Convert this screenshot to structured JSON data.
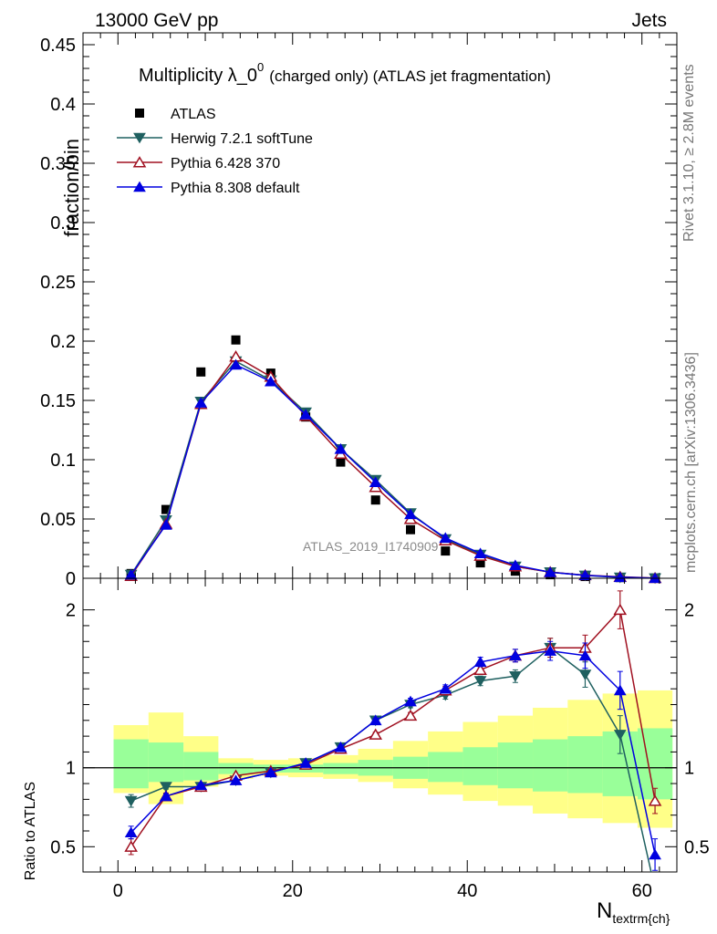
{
  "header": {
    "energy_label": "13000 GeV pp",
    "category_label": "Jets"
  },
  "side_labels": {
    "rivet": "Rivet 3.1.10, ≥ 2.8M events",
    "mcplots": "mcplots.cern.ch [arXiv:1306.3436]"
  },
  "chart_data": [
    {
      "type": "scatter",
      "title": "Multiplicity λ_0",
      "title_sup": "0",
      "title_suffix": "(charged only) (ATLAS jet fragmentation)",
      "watermark": "ATLAS_2019_I1740909",
      "ylabel": "fraction/bin",
      "xlabel": "N",
      "xlabel_sub": "textrm{ch}",
      "xlim": [
        -4,
        64
      ],
      "ylim": [
        0,
        0.46
      ],
      "yticks": [
        0,
        0.05,
        0.1,
        0.15,
        0.2,
        0.25,
        0.3,
        0.35,
        0.4,
        0.45
      ],
      "ytick_labels": [
        "0",
        "0.05",
        "0.1",
        "0.15",
        "0.2",
        "0.25",
        "0.3",
        "0.35",
        "0.4",
        "0.45"
      ],
      "x": [
        1.5,
        5.5,
        9.5,
        13.5,
        17.5,
        21.5,
        25.5,
        29.5,
        33.5,
        37.5,
        41.5,
        45.5,
        49.5,
        53.5,
        57.5,
        61.5
      ],
      "series": [
        {
          "name": "ATLAS",
          "color": "#000000",
          "marker": "square",
          "line": false,
          "values": [
            0.004,
            0.058,
            0.174,
            0.201,
            0.173,
            0.136,
            0.098,
            0.066,
            0.041,
            0.023,
            0.013,
            0.006,
            0.003,
            0.0015,
            0.0006,
            0.0002
          ]
        },
        {
          "name": "Herwig 7.2.1 softTune",
          "color": "#1f6060",
          "marker": "triangle-down",
          "line": true,
          "values": [
            0.003,
            0.049,
            0.149,
            0.183,
            0.167,
            0.14,
            0.109,
            0.083,
            0.055,
            0.033,
            0.02,
            0.01,
            0.0052,
            0.0024,
            0.0007,
            0.0001
          ]
        },
        {
          "name": "Pythia 6.428 370",
          "color": "#a01020",
          "marker": "triangle-up-open",
          "line": true,
          "values": [
            0.002,
            0.046,
            0.147,
            0.187,
            0.17,
            0.137,
            0.105,
            0.077,
            0.05,
            0.032,
            0.019,
            0.01,
            0.0052,
            0.0026,
            0.0012,
            0.0002
          ]
        },
        {
          "name": "Pythia 8.308 default",
          "color": "#0000e0",
          "marker": "triangle-up",
          "line": true,
          "values": [
            0.003,
            0.045,
            0.148,
            0.18,
            0.166,
            0.138,
            0.109,
            0.081,
            0.054,
            0.034,
            0.021,
            0.011,
            0.0051,
            0.0025,
            0.0009,
            0.0001
          ]
        }
      ],
      "xticks": [
        0,
        20,
        40,
        60
      ],
      "xtick_labels": [
        "0",
        "20",
        "40",
        "60"
      ],
      "ratio": {
        "ylabel": "Ratio to ATLAS",
        "ylim": [
          0.34,
          2.2
        ],
        "yticks": [
          0.5,
          1,
          2
        ],
        "ytick_labels": [
          "0.5",
          "1",
          "2"
        ],
        "band_green": [
          [
            0.87,
            1.18
          ],
          [
            0.91,
            1.16
          ],
          [
            0.92,
            1.1
          ],
          [
            0.96,
            1.03
          ],
          [
            0.97,
            1.02
          ],
          [
            0.97,
            1.02
          ],
          [
            0.96,
            1.03
          ],
          [
            0.95,
            1.05
          ],
          [
            0.93,
            1.07
          ],
          [
            0.91,
            1.1
          ],
          [
            0.89,
            1.13
          ],
          [
            0.87,
            1.16
          ],
          [
            0.85,
            1.18
          ],
          [
            0.84,
            1.2
          ],
          [
            0.82,
            1.23
          ],
          [
            0.8,
            1.25
          ]
        ],
        "band_yellow": [
          [
            0.84,
            1.27
          ],
          [
            0.77,
            1.35
          ],
          [
            0.88,
            1.2
          ],
          [
            0.93,
            1.06
          ],
          [
            0.95,
            1.05
          ],
          [
            0.94,
            1.06
          ],
          [
            0.93,
            1.08
          ],
          [
            0.91,
            1.12
          ],
          [
            0.87,
            1.17
          ],
          [
            0.83,
            1.23
          ],
          [
            0.79,
            1.29
          ],
          [
            0.76,
            1.33
          ],
          [
            0.71,
            1.38
          ],
          [
            0.68,
            1.43
          ],
          [
            0.65,
            1.47
          ],
          [
            0.62,
            1.49
          ]
        ],
        "series": [
          {
            "name": "Herwig 7.2.1 softTune",
            "values": [
              0.79,
              0.88,
              0.88,
              0.92,
              0.97,
              1.03,
              1.13,
              1.3,
              1.4,
              1.46,
              1.55,
              1.58,
              1.76,
              1.59,
              1.21,
              0.23
            ],
            "errors": [
              0.04,
              0.015,
              0.01,
              0.01,
              0.01,
              0.01,
              0.012,
              0.015,
              0.02,
              0.025,
              0.03,
              0.04,
              0.06,
              0.08,
              0.12,
              0.1
            ]
          },
          {
            "name": "Pythia 6.428 370",
            "values": [
              0.5,
              0.82,
              0.88,
              0.95,
              0.98,
              1.02,
              1.12,
              1.21,
              1.33,
              1.49,
              1.62,
              1.71,
              1.76,
              1.76,
              2.0,
              0.79
            ],
            "errors": [
              0.05,
              0.02,
              0.01,
              0.01,
              0.01,
              0.01,
              0.012,
              0.015,
              0.02,
              0.025,
              0.03,
              0.04,
              0.06,
              0.08,
              0.12,
              0.08
            ]
          },
          {
            "name": "Pythia 8.308 default",
            "values": [
              0.59,
              0.82,
              0.89,
              0.92,
              0.97,
              1.03,
              1.13,
              1.3,
              1.42,
              1.5,
              1.67,
              1.71,
              1.74,
              1.71,
              1.49,
              0.45
            ],
            "errors": [
              0.04,
              0.015,
              0.01,
              0.01,
              0.01,
              0.01,
              0.012,
              0.015,
              0.02,
              0.025,
              0.03,
              0.04,
              0.06,
              0.08,
              0.12,
              0.1
            ]
          }
        ]
      }
    }
  ]
}
